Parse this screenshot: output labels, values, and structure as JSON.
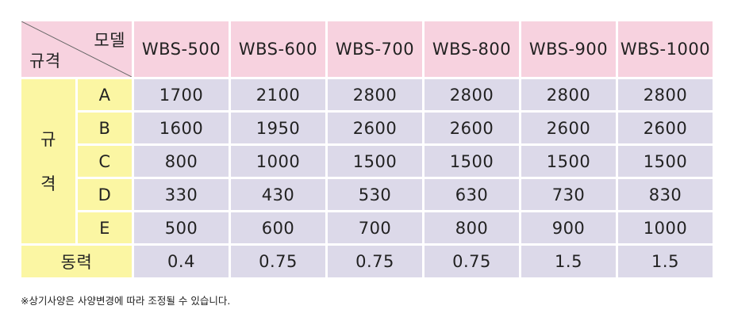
{
  "table": {
    "corner_top": "모델",
    "corner_bottom": "규격",
    "row_group_label": [
      "규",
      "격"
    ],
    "models": [
      "WBS-500",
      "WBS-600",
      "WBS-700",
      "WBS-800",
      "WBS-900",
      "WBS-1000"
    ],
    "rows": [
      {
        "label": "A",
        "values": [
          "1700",
          "2100",
          "2800",
          "2800",
          "2800",
          "2800"
        ]
      },
      {
        "label": "B",
        "values": [
          "1600",
          "1950",
          "2600",
          "2600",
          "2600",
          "2600"
        ]
      },
      {
        "label": "C",
        "values": [
          "800",
          "1000",
          "1500",
          "1500",
          "1500",
          "1500"
        ]
      },
      {
        "label": "D",
        "values": [
          "330",
          "430",
          "530",
          "630",
          "730",
          "830"
        ]
      },
      {
        "label": "E",
        "values": [
          "500",
          "600",
          "700",
          "800",
          "900",
          "1000"
        ]
      }
    ],
    "power_label": "동력",
    "power_values": [
      "0.4",
      "0.75",
      "0.75",
      "0.75",
      "1.5",
      "1.5"
    ]
  },
  "note": "※상기사양은 사양변경에 따라 조정될 수 있습니다.",
  "colors": {
    "header_pink": "#f7d2df",
    "label_yellow": "#fbf6a3",
    "value_lavender": "#dcd9e9"
  }
}
